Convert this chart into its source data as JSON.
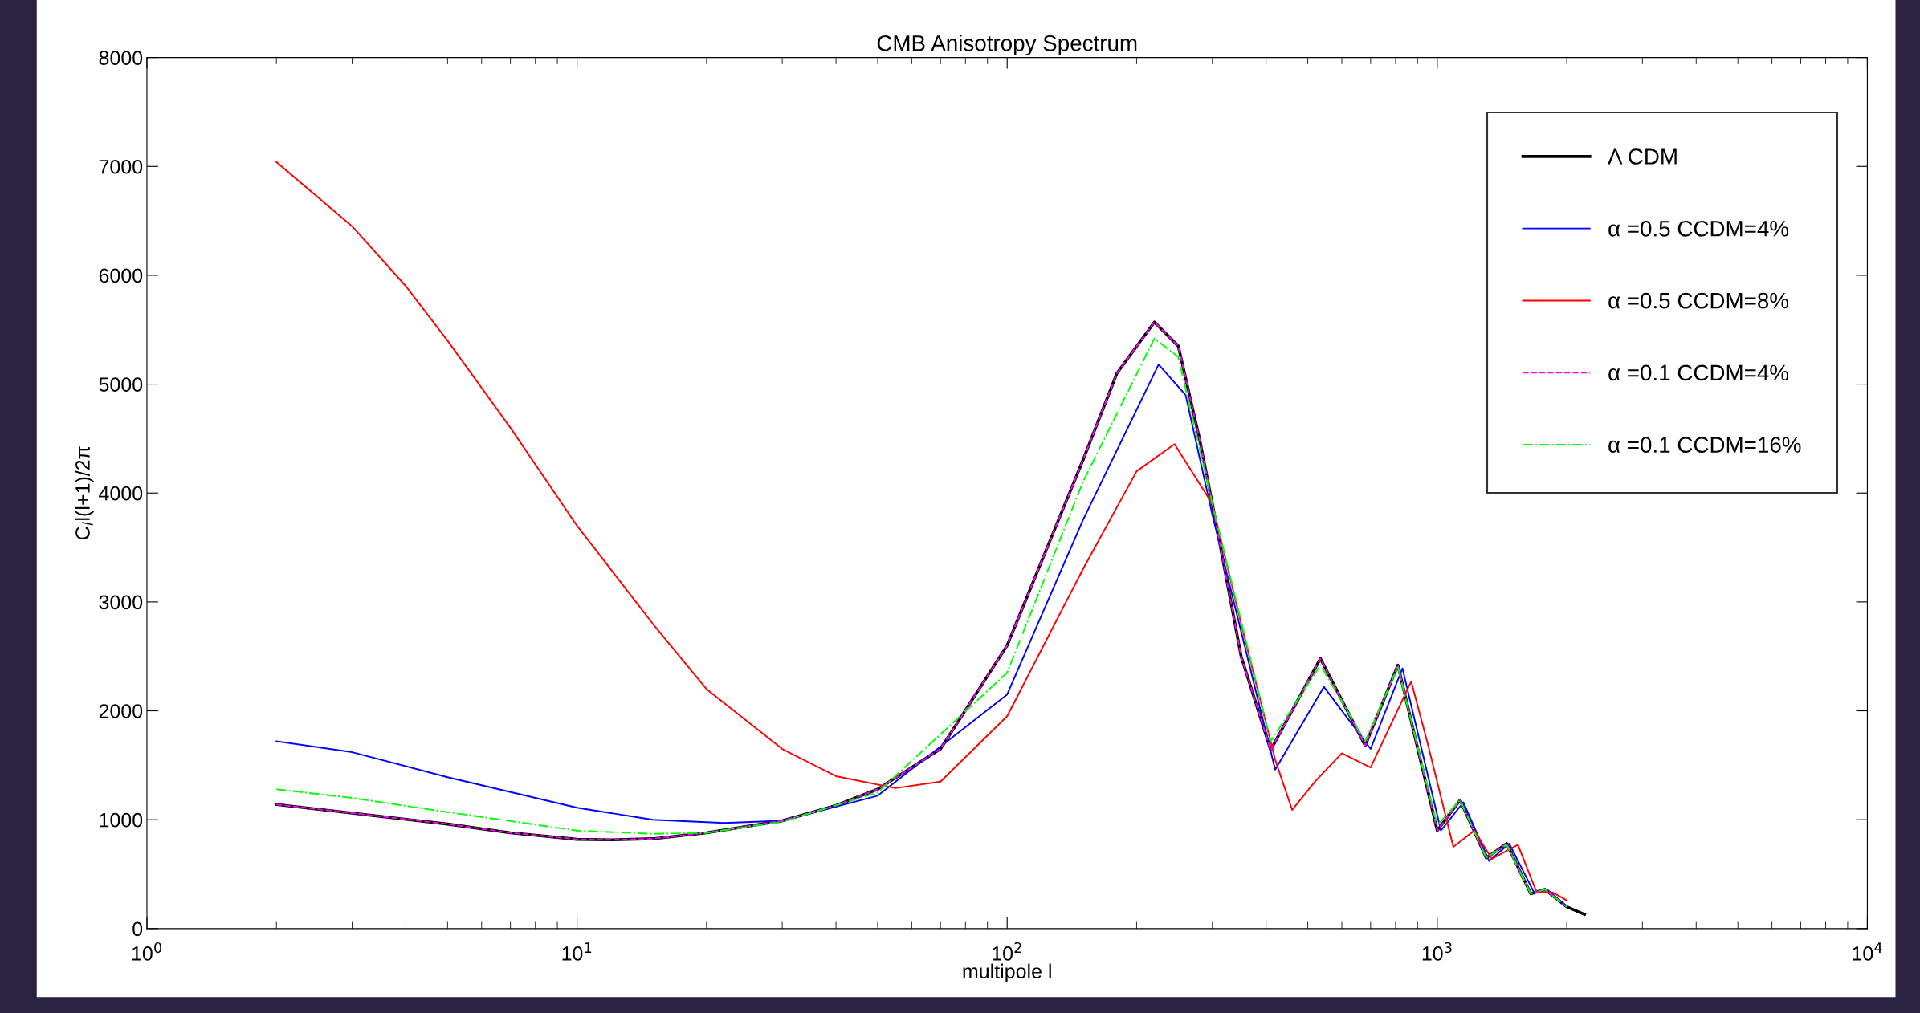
{
  "chart_data": {
    "type": "line",
    "title": "CMB Anisotropy Spectrum",
    "xlabel": "multipole l",
    "ylabel": "C$_{l}$l(l+1)/2π",
    "log": "x",
    "xlim": [
      1,
      10000
    ],
    "ylim": [
      0,
      8000
    ],
    "xticks": [
      {
        "value": 1,
        "label": "10$^{0}$"
      },
      {
        "value": 10,
        "label": "10$^{1}$"
      },
      {
        "value": 100,
        "label": "10$^{2}$"
      },
      {
        "value": 1000,
        "label": "10$^{3}$"
      },
      {
        "value": 10000,
        "label": "10$^{4}$"
      }
    ],
    "yticks": [
      0,
      1000,
      2000,
      3000,
      4000,
      5000,
      6000,
      7000,
      8000
    ],
    "grid": false,
    "legend": "top right",
    "marker": "none",
    "series": [
      {
        "name": "Λ CDM",
        "color": "#000000",
        "line_style": "solid",
        "x": [
          2,
          3,
          5,
          7,
          10,
          12,
          15,
          20,
          30,
          40,
          50,
          70,
          100,
          130,
          150,
          180,
          220,
          250,
          280,
          300,
          350,
          410,
          535,
          680,
          810,
          1000,
          1130,
          1300,
          1450,
          1650,
          1780,
          2000,
          2200
        ],
        "values": [
          1140,
          1060,
          960,
          880,
          820,
          815,
          825,
          880,
          990,
          1130,
          1280,
          1650,
          2600,
          3700,
          4300,
          5100,
          5570,
          5350,
          4500,
          3900,
          2500,
          1640,
          2480,
          1680,
          2420,
          900,
          1180,
          650,
          780,
          320,
          360,
          200,
          130
        ]
      },
      {
        "name": "α =0.5 CCDM=4%",
        "color": "#0000ff",
        "line_style": "solid",
        "x": [
          2,
          3,
          5,
          10,
          15,
          22,
          30,
          50,
          100,
          150,
          225,
          260,
          300,
          420,
          545,
          700,
          830,
          1020,
          1150,
          1320,
          1470,
          1680,
          1800,
          2000
        ],
        "values": [
          1720,
          1620,
          1390,
          1110,
          1000,
          970,
          990,
          1220,
          2150,
          3750,
          5180,
          4900,
          3800,
          1460,
          2220,
          1650,
          2390,
          900,
          1160,
          620,
          780,
          330,
          360,
          200
        ]
      },
      {
        "name": "α =0.5 CCDM=8%",
        "color": "#ff0000",
        "line_style": "solid",
        "x": [
          2,
          3,
          4,
          5,
          7,
          10,
          15,
          20,
          30,
          40,
          55,
          70,
          100,
          150,
          200,
          245,
          300,
          350,
          420,
          460,
          520,
          600,
          700,
          870,
          950,
          1090,
          1220,
          1340,
          1540,
          1700,
          1860,
          2000
        ],
        "values": [
          7040,
          6450,
          5900,
          5400,
          4600,
          3700,
          2800,
          2200,
          1650,
          1400,
          1290,
          1350,
          1950,
          3300,
          4200,
          4450,
          3900,
          2800,
          1550,
          1090,
          1350,
          1610,
          1480,
          2270,
          1700,
          750,
          900,
          640,
          770,
          340,
          330,
          260
        ]
      },
      {
        "name": "α =0.1 CCDM=4%",
        "color": "#ff00ff",
        "line_style": "dashed",
        "x": [
          2,
          3,
          5,
          7,
          10,
          12,
          15,
          20,
          30,
          40,
          50,
          70,
          100,
          130,
          150,
          180,
          220,
          250,
          280,
          300,
          350,
          410,
          535,
          680,
          810,
          1000,
          1130,
          1300,
          1450,
          1650,
          1780,
          2000
        ],
        "values": [
          1140,
          1060,
          960,
          880,
          820,
          815,
          825,
          880,
          990,
          1130,
          1280,
          1650,
          2600,
          3700,
          4300,
          5100,
          5570,
          5350,
          4500,
          3900,
          2500,
          1640,
          2480,
          1680,
          2420,
          900,
          1180,
          650,
          780,
          320,
          360,
          200
        ]
      },
      {
        "name": "α =0.1 CCDM=16%",
        "color": "#00ff00",
        "line_style": "dashdot",
        "x": [
          2,
          3,
          5,
          10,
          15,
          20,
          30,
          50,
          100,
          150,
          220,
          250,
          300,
          410,
          535,
          680,
          810,
          1000,
          1130,
          1300,
          1450,
          1650,
          1780,
          2000
        ],
        "values": [
          1280,
          1200,
          1070,
          900,
          870,
          880,
          980,
          1250,
          2350,
          4100,
          5420,
          5250,
          3900,
          1720,
          2420,
          1720,
          2400,
          950,
          1180,
          650,
          770,
          320,
          360,
          200
        ]
      }
    ]
  }
}
